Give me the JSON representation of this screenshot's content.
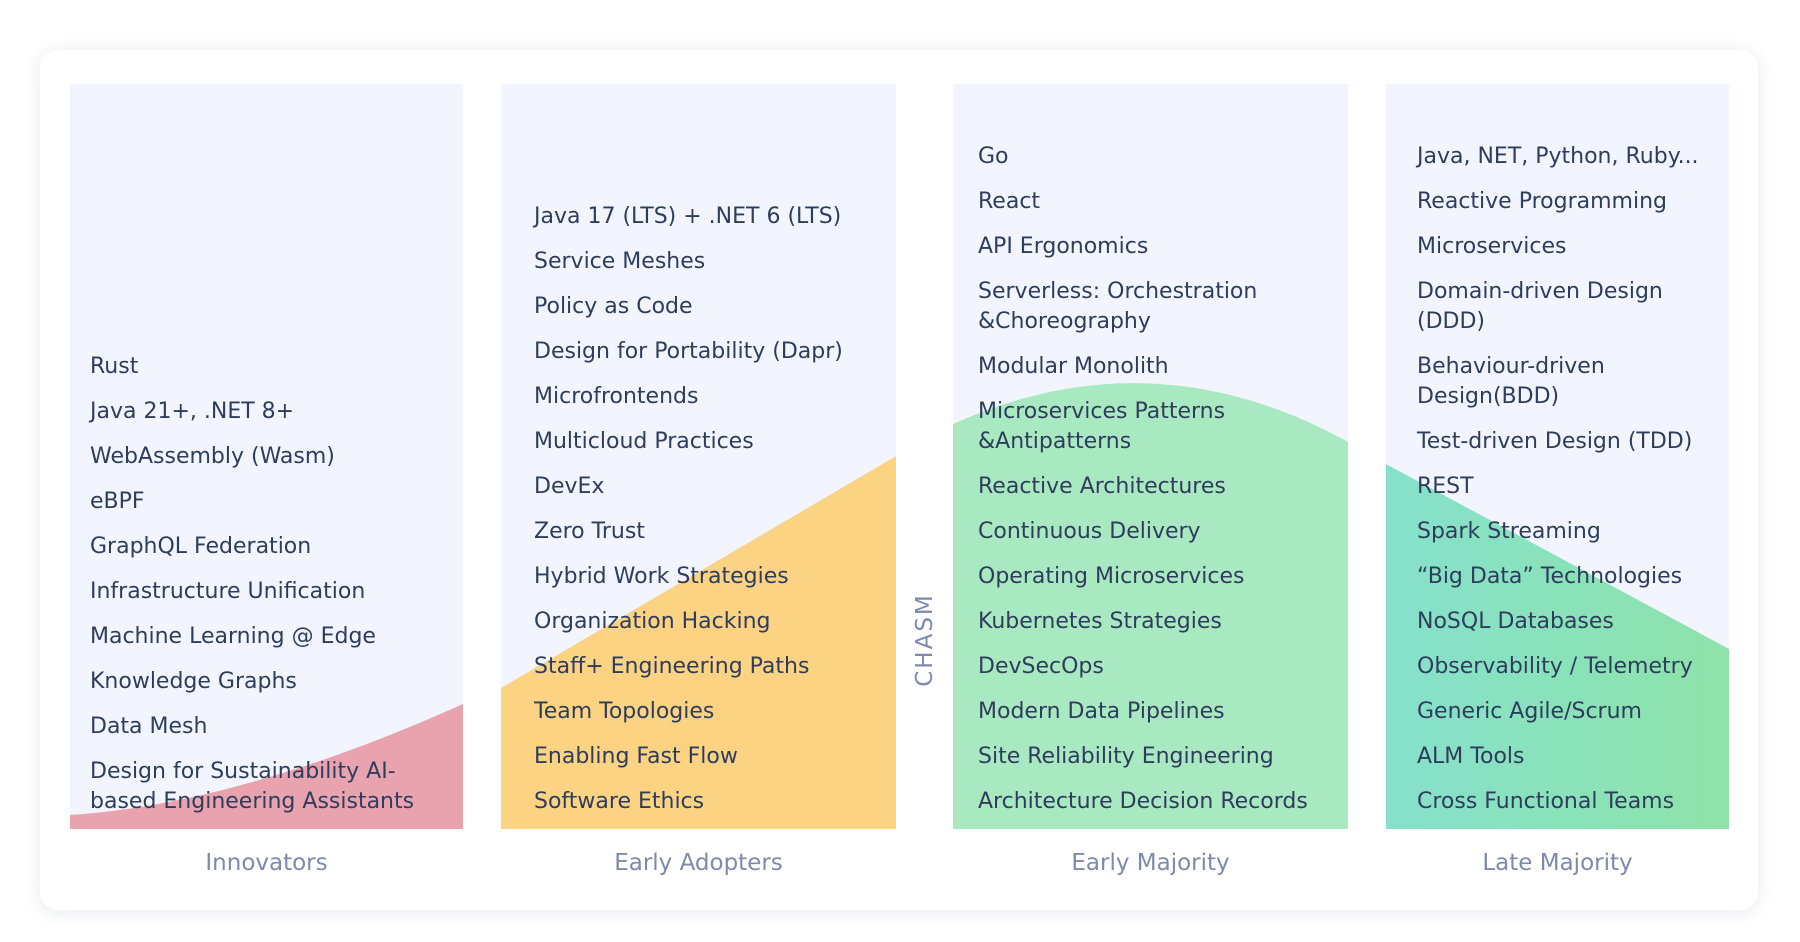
{
  "chasm_label": "CHASM",
  "columns": [
    {
      "label": "Innovators",
      "color": "#e9a3ae",
      "items": [
        "Rust",
        "Java 21+, .NET 8+",
        "WebAssembly (Wasm)",
        "eBPF",
        "GraphQL Federation",
        "Infrastructure Unification",
        "Machine Learning @ Edge",
        "Knowledge Graphs",
        "Data Mesh",
        "Design for Sustainability AI-\nbased Engineering Assistants"
      ]
    },
    {
      "label": "Early Adopters",
      "color": "#fbd383",
      "items": [
        "Java 17 (LTS) + .NET 6 (LTS)",
        "Service Meshes",
        "Policy as Code",
        "Design for Portability (Dapr)",
        "Microfrontends",
        "Multicloud Practices",
        "DevEx",
        "Zero Trust",
        "Hybrid Work Strategies",
        "Organization Hacking",
        "Staff+ Engineering Paths",
        "Team Topologies",
        "Enabling Fast Flow",
        "Software Ethics"
      ]
    },
    {
      "label": "Early Majority",
      "color": "#a9e9c2",
      "items": [
        "Go",
        "React",
        "API Ergonomics",
        "Serverless: Orchestration\n&Choreography",
        "Modular Monolith",
        "Microservices Patterns\n&Antipatterns",
        "Reactive Architectures",
        "Continuous Delivery",
        "Operating Microservices",
        "Kubernetes Strategies",
        "DevSecOps",
        "Modern Data Pipelines",
        "Site Reliability Engineering",
        "Architecture Decision Records"
      ]
    },
    {
      "label": "Late Majority",
      "color_start": "#86e1cc",
      "color_end": "#8ee2a9",
      "items": [
        "Java, NET, Python, Ruby...",
        "Reactive Programming",
        "Microservices",
        "Domain-driven Design\n(DDD)",
        "Behaviour-driven\nDesign(BDD)",
        "Test-driven Design (TDD)",
        "REST",
        "Spark Streaming",
        "“Big Data” Technologies",
        "NoSQL Databases",
        "Observability / Telemetry",
        "Generic Agile/Scrum",
        "ALM Tools",
        "Cross Functional Teams"
      ]
    }
  ]
}
